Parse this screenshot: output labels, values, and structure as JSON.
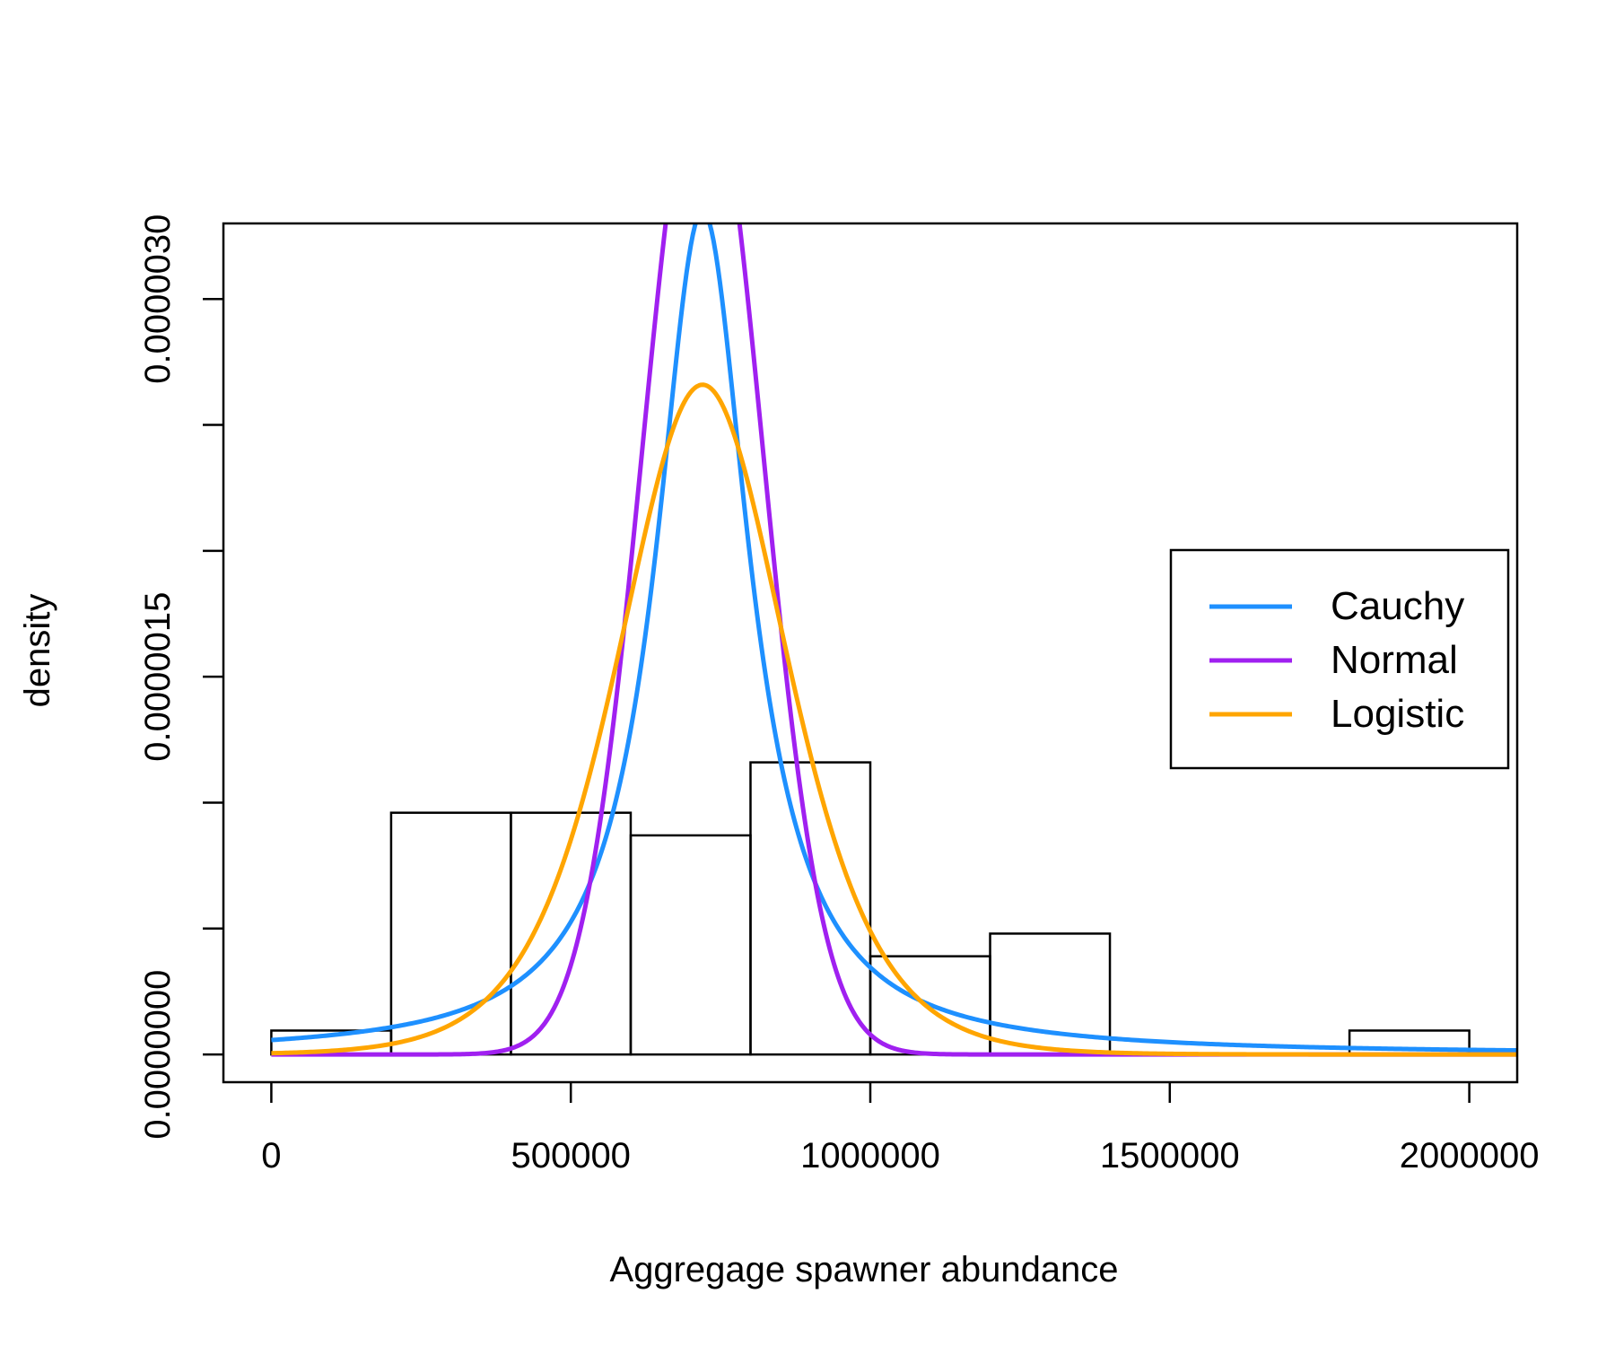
{
  "chart_data": {
    "type": "bar",
    "title": "",
    "xlabel": "Aggregage spawner abundance",
    "ylabel": "density",
    "xlim": [
      -80000,
      2080000
    ],
    "ylim": [
      -1.1e-07,
      3.3e-06
    ],
    "x_ticks": [
      0,
      500000,
      1000000,
      1500000,
      2000000
    ],
    "x_tick_labels": [
      "0",
      "500000",
      "1000000",
      "1500000",
      "2000000"
    ],
    "y_ticks": [
      0,
      5e-07,
      1e-06,
      1.5e-06,
      2e-06,
      2.5e-06,
      3e-06
    ],
    "y_tick_labels": [
      {
        "value": 0,
        "label": "0.0000000"
      },
      {
        "value": 1.5e-06,
        "label": "0.0000015"
      },
      {
        "value": 3e-06,
        "label": "0.0000030"
      }
    ],
    "grid": false,
    "legend_position": "right",
    "histogram": {
      "bin_edges": [
        0,
        200000,
        400000,
        600000,
        800000,
        1000000,
        1200000,
        1400000,
        1600000,
        1800000,
        2000000
      ],
      "density": [
        9.5e-08,
        9.6e-07,
        9.6e-07,
        8.7e-07,
        1.16e-06,
        3.9e-07,
        4.8e-07,
        0,
        0,
        9.5e-08
      ]
    },
    "series": [
      {
        "name": "Cauchy",
        "color": "#1E90FF",
        "distribution": "cauchy",
        "location": 720000,
        "scale": 95000
      },
      {
        "name": "Normal",
        "color": "#A020F0",
        "distribution": "normal",
        "mean": 720000,
        "sd": 100000
      },
      {
        "name": "Logistic",
        "color": "#FFA500",
        "distribution": "logistic",
        "location": 720000,
        "scale": 94000
      }
    ]
  }
}
